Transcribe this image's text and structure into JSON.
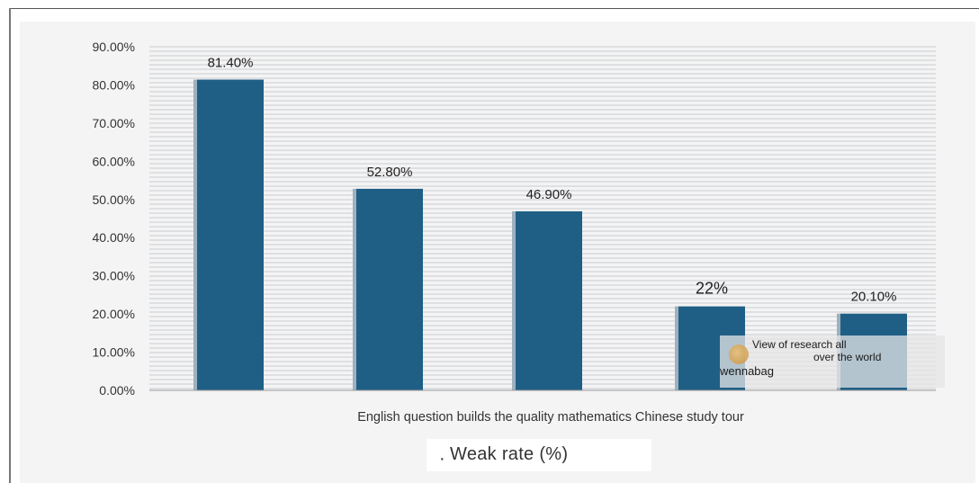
{
  "chart_data": {
    "type": "bar",
    "categories": [
      "English",
      "question builds the",
      "quality mathematics",
      "Chinese",
      "study tour"
    ],
    "values": [
      81.4,
      52.8,
      46.9,
      22,
      20.1
    ],
    "data_labels": [
      "81.40%",
      "52.80%",
      "46.90%",
      "22%",
      "20.10%"
    ],
    "x_caption": "English question builds the quality mathematics Chinese study tour",
    "y_ticks": [
      "0.00%",
      "10.00%",
      "20.00%",
      "30.00%",
      "40.00%",
      "50.00%",
      "60.00%",
      "70.00%",
      "80.00%",
      "90.00%"
    ],
    "ylim": [
      0,
      90
    ],
    "legend": {
      "marker": "·",
      "label": "Weak rate (%)",
      "position": "bottom-center"
    },
    "bar_color": "#1f5f86",
    "grid": true
  },
  "watermark": {
    "line1": "View of research all",
    "line2": "over the world",
    "line3": "wennabag"
  }
}
